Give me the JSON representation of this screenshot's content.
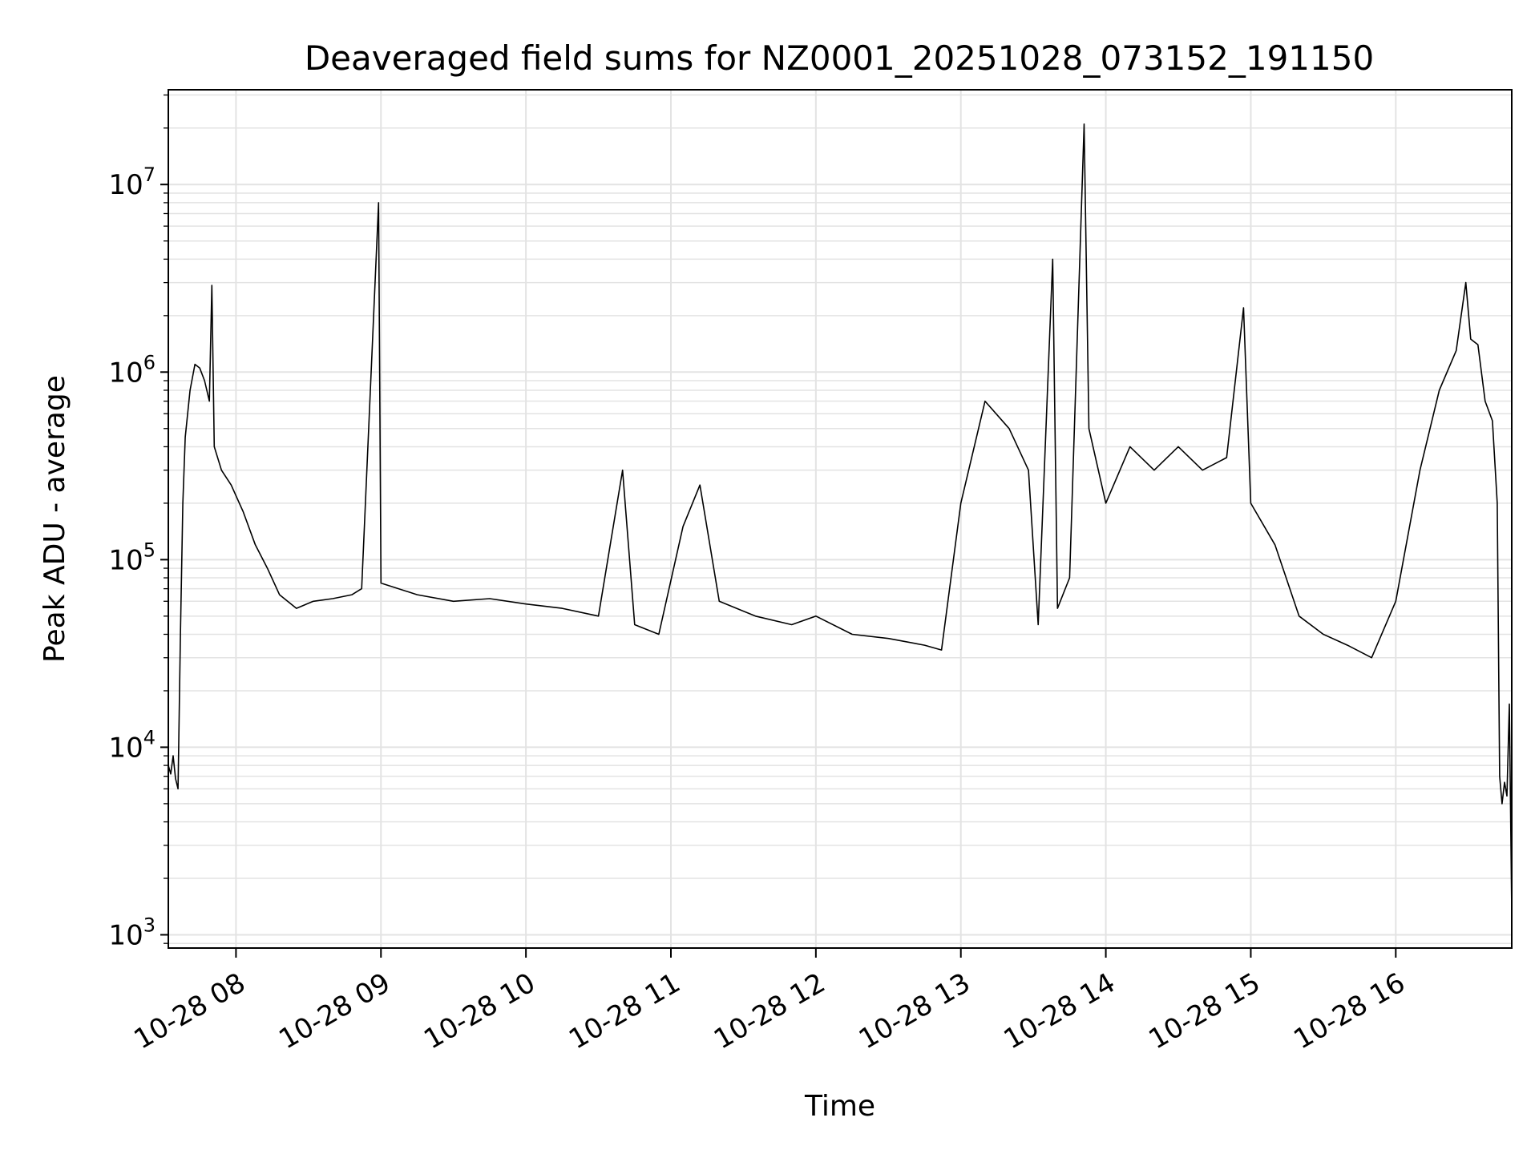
{
  "chart_data": {
    "type": "line",
    "title": "Deaveraged field sums for NZ0001_20251028_073152_191150",
    "xlabel": "Time",
    "ylabel": "Peak ADU - average",
    "yscale": "log",
    "ylim": [
      850,
      32000000
    ],
    "xlim": [
      "2025-10-28 07:32",
      "2025-10-28 16:48"
    ],
    "grid": true,
    "colors": {
      "line": "#000000",
      "grid": "#e3e3e3",
      "axes": "#000000"
    },
    "x_ticks": [
      {
        "time": "2025-10-28 08:00",
        "label": "10-28 08"
      },
      {
        "time": "2025-10-28 09:00",
        "label": "10-28 09"
      },
      {
        "time": "2025-10-28 10:00",
        "label": "10-28 10"
      },
      {
        "time": "2025-10-28 11:00",
        "label": "10-28 11"
      },
      {
        "time": "2025-10-28 12:00",
        "label": "10-28 12"
      },
      {
        "time": "2025-10-28 13:00",
        "label": "10-28 13"
      },
      {
        "time": "2025-10-28 14:00",
        "label": "10-28 14"
      },
      {
        "time": "2025-10-28 15:00",
        "label": "10-28 15"
      },
      {
        "time": "2025-10-28 16:00",
        "label": "10-28 16"
      }
    ],
    "y_ticks": [
      {
        "value": 1000,
        "base": "10",
        "exp": "3"
      },
      {
        "value": 10000,
        "base": "10",
        "exp": "4"
      },
      {
        "value": 100000,
        "base": "10",
        "exp": "5"
      },
      {
        "value": 1000000,
        "base": "10",
        "exp": "6"
      },
      {
        "value": 10000000,
        "base": "10",
        "exp": "7"
      }
    ],
    "series": [
      {
        "values": [
          {
            "t": "2025-10-28 07:32",
            "y": 8000
          },
          {
            "t": "2025-10-28 07:33",
            "y": 7200
          },
          {
            "t": "2025-10-28 07:34",
            "y": 9000
          },
          {
            "t": "2025-10-28 07:35",
            "y": 6800
          },
          {
            "t": "2025-10-28 07:36",
            "y": 6000
          },
          {
            "t": "2025-10-28 07:37",
            "y": 40000
          },
          {
            "t": "2025-10-28 07:38",
            "y": 200000
          },
          {
            "t": "2025-10-28 07:39",
            "y": 450000
          },
          {
            "t": "2025-10-28 07:41",
            "y": 800000
          },
          {
            "t": "2025-10-28 07:43",
            "y": 1100000
          },
          {
            "t": "2025-10-28 07:45",
            "y": 1050000
          },
          {
            "t": "2025-10-28 07:47",
            "y": 900000
          },
          {
            "t": "2025-10-28 07:49",
            "y": 700000
          },
          {
            "t": "2025-10-28 07:50",
            "y": 2900000
          },
          {
            "t": "2025-10-28 07:51",
            "y": 400000
          },
          {
            "t": "2025-10-28 07:54",
            "y": 300000
          },
          {
            "t": "2025-10-28 07:58",
            "y": 250000
          },
          {
            "t": "2025-10-28 08:03",
            "y": 180000
          },
          {
            "t": "2025-10-28 08:08",
            "y": 120000
          },
          {
            "t": "2025-10-28 08:13",
            "y": 90000
          },
          {
            "t": "2025-10-28 08:18",
            "y": 65000
          },
          {
            "t": "2025-10-28 08:25",
            "y": 55000
          },
          {
            "t": "2025-10-28 08:32",
            "y": 60000
          },
          {
            "t": "2025-10-28 08:40",
            "y": 62000
          },
          {
            "t": "2025-10-28 08:48",
            "y": 65000
          },
          {
            "t": "2025-10-28 08:52",
            "y": 70000
          },
          {
            "t": "2025-10-28 08:59",
            "y": 8000000
          },
          {
            "t": "2025-10-28 09:00",
            "y": 75000
          },
          {
            "t": "2025-10-28 09:15",
            "y": 65000
          },
          {
            "t": "2025-10-28 09:30",
            "y": 60000
          },
          {
            "t": "2025-10-28 09:45",
            "y": 62000
          },
          {
            "t": "2025-10-28 10:00",
            "y": 58000
          },
          {
            "t": "2025-10-28 10:15",
            "y": 55000
          },
          {
            "t": "2025-10-28 10:30",
            "y": 50000
          },
          {
            "t": "2025-10-28 10:40",
            "y": 300000
          },
          {
            "t": "2025-10-28 10:45",
            "y": 45000
          },
          {
            "t": "2025-10-28 10:55",
            "y": 40000
          },
          {
            "t": "2025-10-28 11:05",
            "y": 150000
          },
          {
            "t": "2025-10-28 11:12",
            "y": 250000
          },
          {
            "t": "2025-10-28 11:20",
            "y": 60000
          },
          {
            "t": "2025-10-28 11:35",
            "y": 50000
          },
          {
            "t": "2025-10-28 11:50",
            "y": 45000
          },
          {
            "t": "2025-10-28 12:00",
            "y": 50000
          },
          {
            "t": "2025-10-28 12:15",
            "y": 40000
          },
          {
            "t": "2025-10-28 12:30",
            "y": 38000
          },
          {
            "t": "2025-10-28 12:45",
            "y": 35000
          },
          {
            "t": "2025-10-28 12:52",
            "y": 33000
          },
          {
            "t": "2025-10-28 13:00",
            "y": 200000
          },
          {
            "t": "2025-10-28 13:10",
            "y": 700000
          },
          {
            "t": "2025-10-28 13:20",
            "y": 500000
          },
          {
            "t": "2025-10-28 13:28",
            "y": 300000
          },
          {
            "t": "2025-10-28 13:32",
            "y": 45000
          },
          {
            "t": "2025-10-28 13:38",
            "y": 4000000
          },
          {
            "t": "2025-10-28 13:40",
            "y": 55000
          },
          {
            "t": "2025-10-28 13:45",
            "y": 80000
          },
          {
            "t": "2025-10-28 13:51",
            "y": 21000000
          },
          {
            "t": "2025-10-28 13:53",
            "y": 500000
          },
          {
            "t": "2025-10-28 14:00",
            "y": 200000
          },
          {
            "t": "2025-10-28 14:10",
            "y": 400000
          },
          {
            "t": "2025-10-28 14:20",
            "y": 300000
          },
          {
            "t": "2025-10-28 14:30",
            "y": 400000
          },
          {
            "t": "2025-10-28 14:40",
            "y": 300000
          },
          {
            "t": "2025-10-28 14:50",
            "y": 350000
          },
          {
            "t": "2025-10-28 14:57",
            "y": 2200000
          },
          {
            "t": "2025-10-28 15:00",
            "y": 200000
          },
          {
            "t": "2025-10-28 15:10",
            "y": 120000
          },
          {
            "t": "2025-10-28 15:20",
            "y": 50000
          },
          {
            "t": "2025-10-28 15:30",
            "y": 40000
          },
          {
            "t": "2025-10-28 15:40",
            "y": 35000
          },
          {
            "t": "2025-10-28 15:50",
            "y": 30000
          },
          {
            "t": "2025-10-28 16:00",
            "y": 60000
          },
          {
            "t": "2025-10-28 16:10",
            "y": 300000
          },
          {
            "t": "2025-10-28 16:18",
            "y": 800000
          },
          {
            "t": "2025-10-28 16:25",
            "y": 1300000
          },
          {
            "t": "2025-10-28 16:29",
            "y": 3000000
          },
          {
            "t": "2025-10-28 16:31",
            "y": 1500000
          },
          {
            "t": "2025-10-28 16:34",
            "y": 1400000
          },
          {
            "t": "2025-10-28 16:37",
            "y": 700000
          },
          {
            "t": "2025-10-28 16:40",
            "y": 550000
          },
          {
            "t": "2025-10-28 16:42",
            "y": 200000
          },
          {
            "t": "2025-10-28 16:43",
            "y": 7000
          },
          {
            "t": "2025-10-28 16:44",
            "y": 5000
          },
          {
            "t": "2025-10-28 16:45",
            "y": 6500
          },
          {
            "t": "2025-10-28 16:46",
            "y": 5500
          },
          {
            "t": "2025-10-28 16:47",
            "y": 17000
          },
          {
            "t": "2025-10-28 16:48",
            "y": 1300
          }
        ]
      }
    ]
  }
}
